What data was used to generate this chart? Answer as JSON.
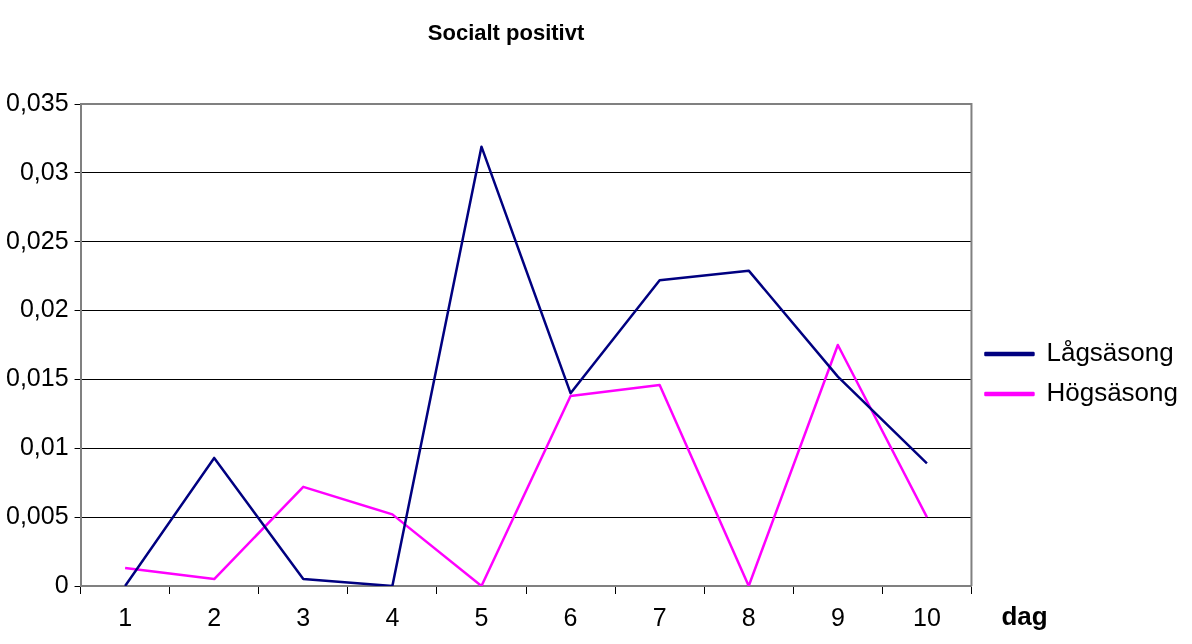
{
  "chart_data": {
    "type": "line",
    "title": "Socialt positivt",
    "xlabel": "dag",
    "categories": [
      "1",
      "2",
      "3",
      "4",
      "5",
      "6",
      "7",
      "8",
      "9",
      "10"
    ],
    "series": [
      {
        "name": "Lågsäsong",
        "color": "#000080",
        "values": [
          0,
          0.0093,
          0.0005,
          0,
          0.0319,
          0.014,
          0.0222,
          0.0229,
          0.0152,
          0.0089
        ]
      },
      {
        "name": "Högsäsong",
        "color": "#ff00ff",
        "values": [
          0.0013,
          0.0005,
          0.0072,
          0.0052,
          0,
          0.0138,
          0.0146,
          0,
          0.0175,
          0.005
        ]
      }
    ],
    "ylim": [
      0,
      0.035
    ],
    "yticks": [
      {
        "value": 0,
        "label": "0"
      },
      {
        "value": 0.005,
        "label": "0,005"
      },
      {
        "value": 0.01,
        "label": "0,01"
      },
      {
        "value": 0.015,
        "label": "0,015"
      },
      {
        "value": 0.02,
        "label": "0,02"
      },
      {
        "value": 0.025,
        "label": "0,025"
      },
      {
        "value": 0.03,
        "label": "0,03"
      },
      {
        "value": 0.035,
        "label": "0,035"
      }
    ],
    "grid": "y",
    "legend": "right",
    "marker": "none",
    "line_style": "solid"
  }
}
